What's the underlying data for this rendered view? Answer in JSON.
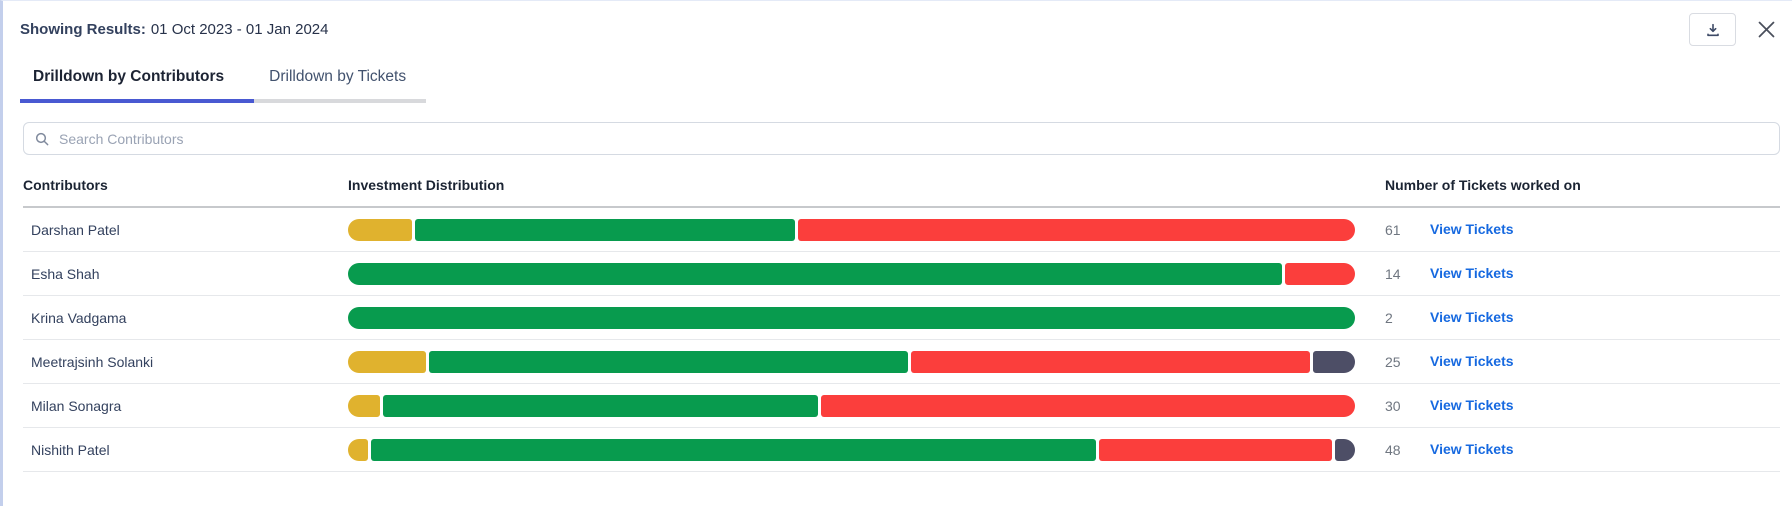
{
  "panel": {
    "showing_results_label": "Showing Results:",
    "date_range": "01 Oct 2023 - 01 Jan 2024"
  },
  "tabs": [
    {
      "label": "Drilldown by Contributors",
      "active": true
    },
    {
      "label": "Drilldown by Tickets",
      "active": false
    }
  ],
  "search": {
    "placeholder": "Search Contributors"
  },
  "table": {
    "headers": [
      "Contributors",
      "Investment Distribution",
      "Number of Tickets worked on"
    ],
    "view_tickets_label": "View Tickets",
    "rows": [
      {
        "name": "Darshan Patel",
        "tickets": "61",
        "segments": [
          {
            "color": "yellow",
            "pct": 6.4
          },
          {
            "color": "green",
            "pct": 38.0
          },
          {
            "color": "red",
            "pct": 55.6
          }
        ]
      },
      {
        "name": "Esha Shah",
        "tickets": "14",
        "segments": [
          {
            "color": "green",
            "pct": 93.0
          },
          {
            "color": "red",
            "pct": 7.0
          }
        ]
      },
      {
        "name": "Krina Vadgama",
        "tickets": "2",
        "segments": [
          {
            "color": "green",
            "pct": 100.0
          }
        ]
      },
      {
        "name": "Meetrajsinh Solanki",
        "tickets": "25",
        "segments": [
          {
            "color": "yellow",
            "pct": 7.8
          },
          {
            "color": "green",
            "pct": 48.0
          },
          {
            "color": "red",
            "pct": 40.0
          },
          {
            "color": "slate",
            "pct": 4.2
          }
        ]
      },
      {
        "name": "Milan Sonagra",
        "tickets": "30",
        "segments": [
          {
            "color": "yellow",
            "pct": 3.2
          },
          {
            "color": "green",
            "pct": 43.5
          },
          {
            "color": "red",
            "pct": 53.3
          }
        ]
      },
      {
        "name": "Nishith Patel",
        "tickets": "48",
        "segments": [
          {
            "color": "yellow",
            "pct": 2.0
          },
          {
            "color": "green",
            "pct": 72.6
          },
          {
            "color": "red",
            "pct": 23.4
          },
          {
            "color": "slate",
            "pct": 2.0
          }
        ]
      }
    ]
  },
  "colors": {
    "yellow": "#e0b22e",
    "green": "#089b4e",
    "red": "#fb3e3c",
    "slate": "#4d4e66",
    "link_blue": "#1669e0",
    "tab_underline": "#4959d2"
  }
}
